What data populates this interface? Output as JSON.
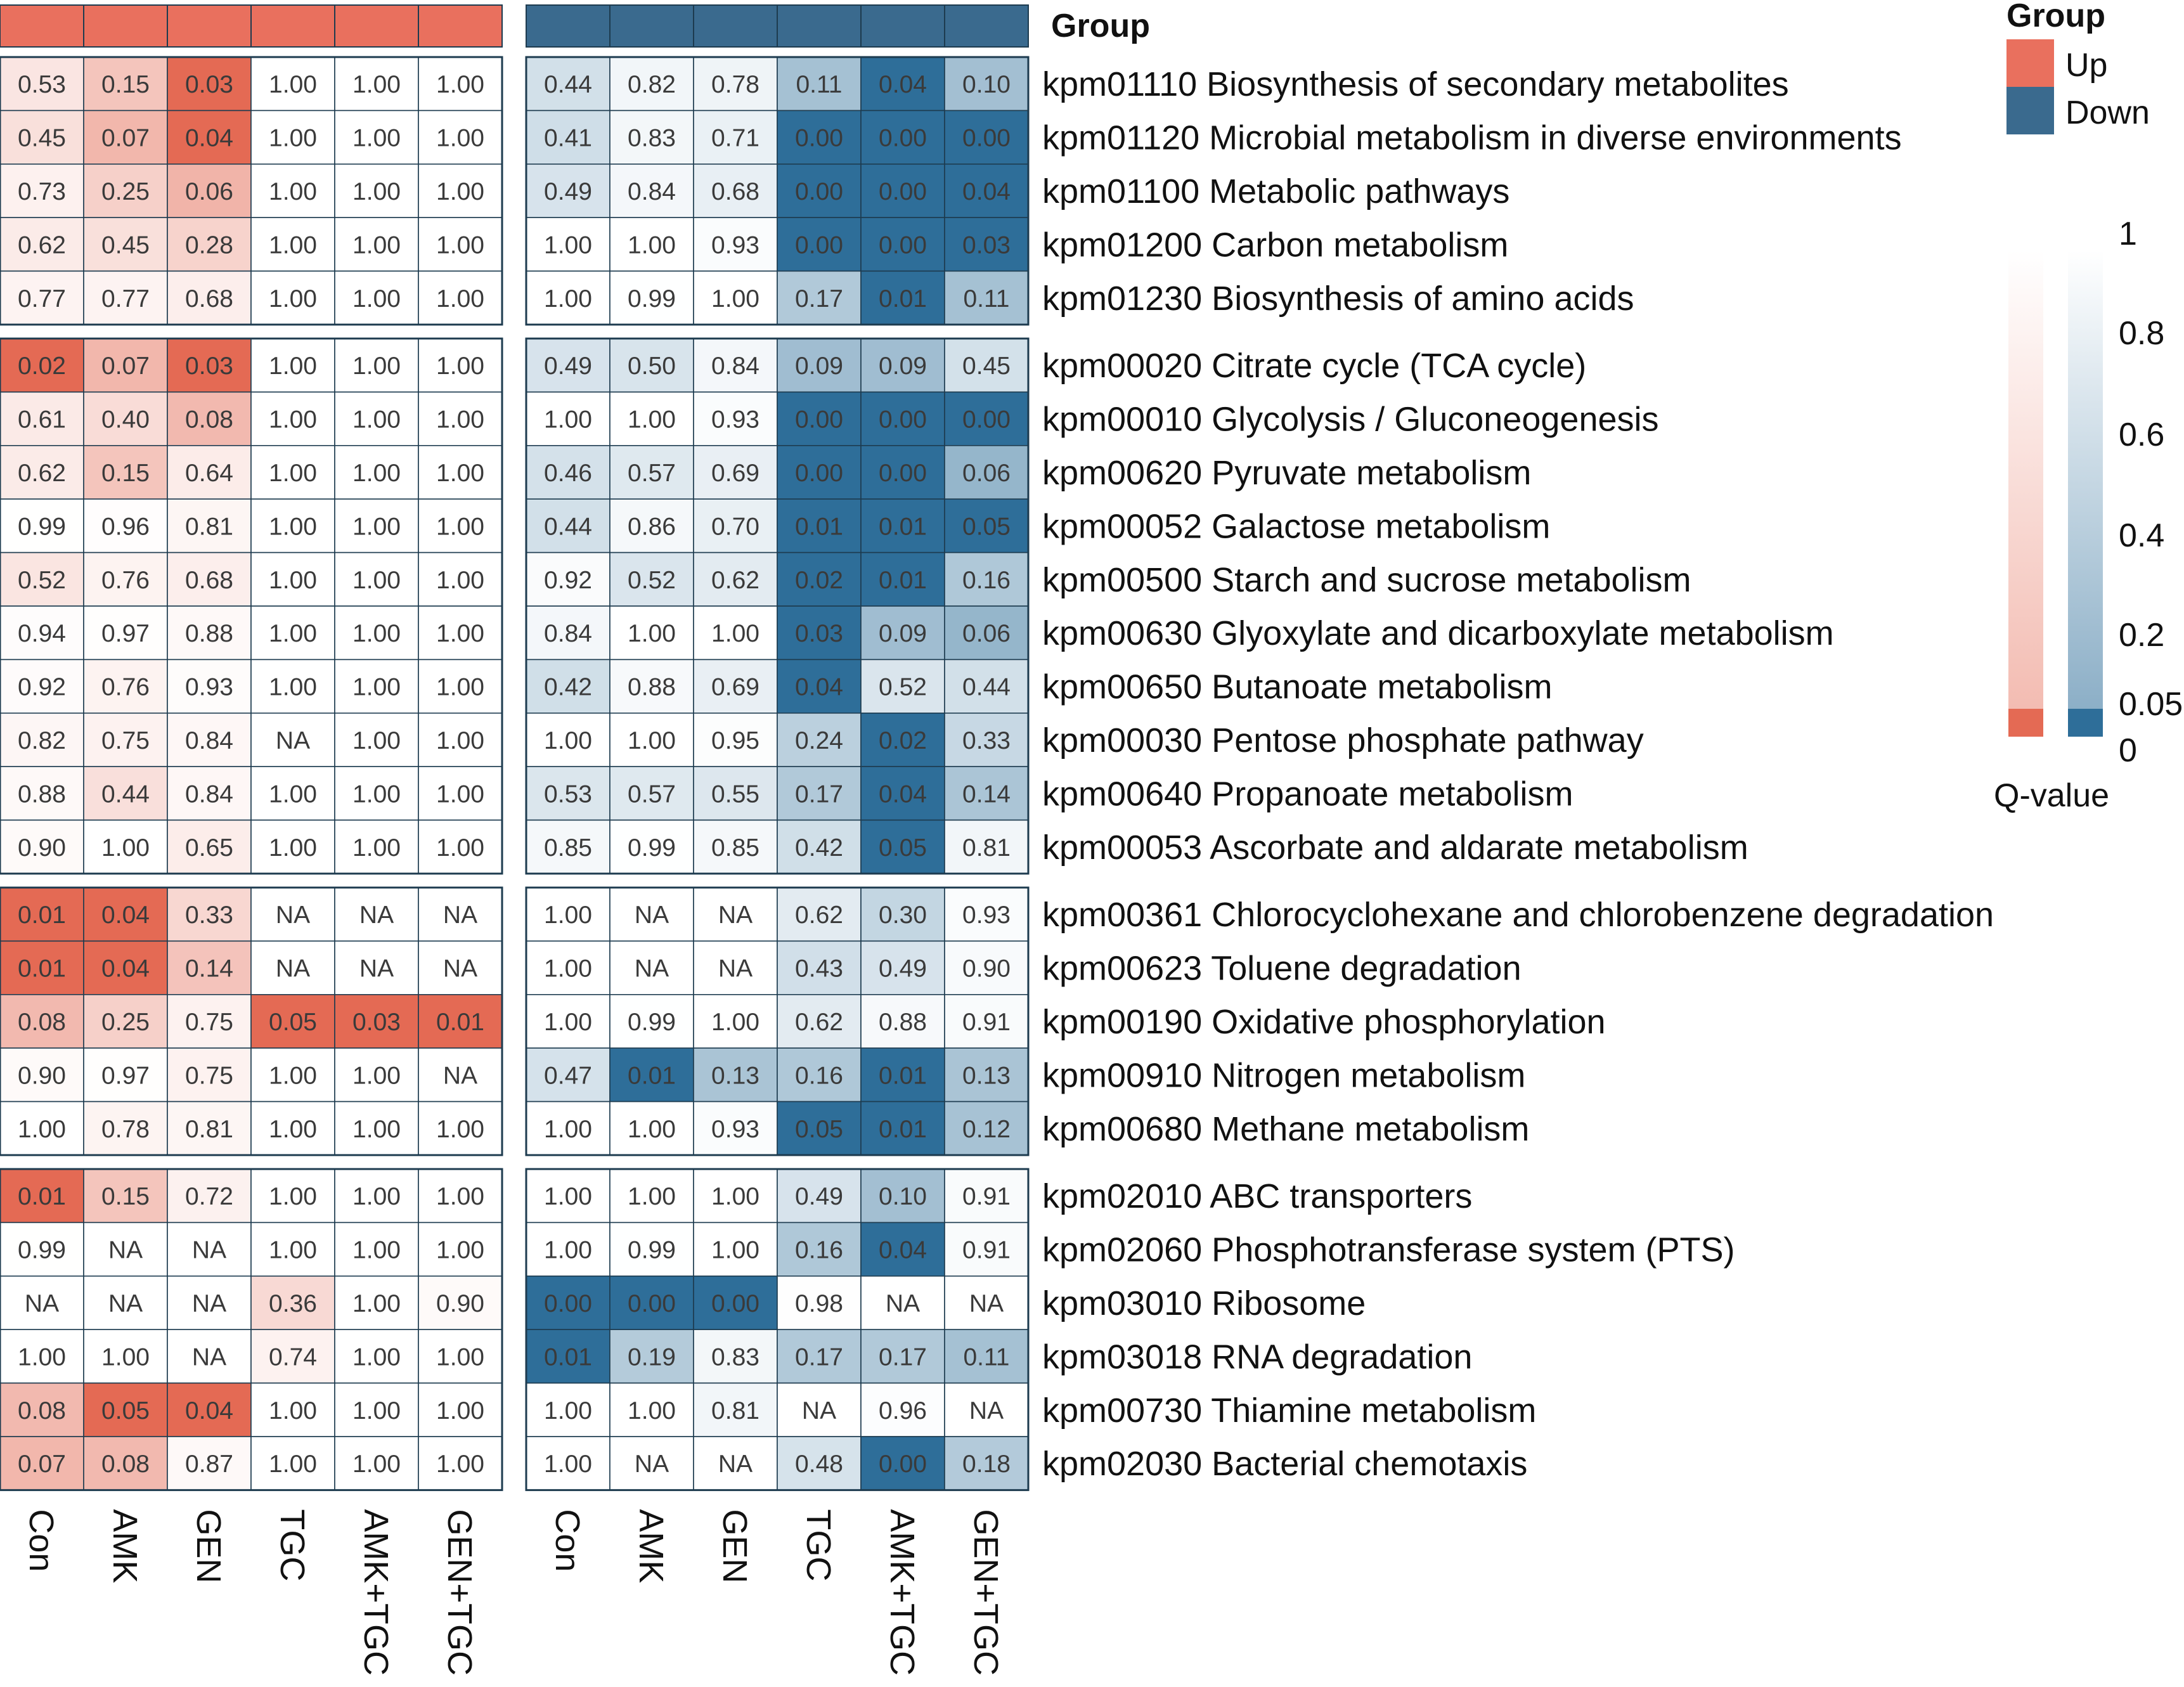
{
  "chart_data": {
    "type": "heatmap",
    "title": "",
    "annotation_title": "Group",
    "value_name": "Q-value",
    "colors": {
      "up": "#E46A54",
      "down": "#2E6E99",
      "up_bar": "#E9705E",
      "down_bar": "#3A6A8E",
      "grid": "#1d3b4f"
    },
    "columns": [
      "Con",
      "AMK",
      "GEN",
      "TGC",
      "AMK+TGC",
      "GEN+TGC"
    ],
    "panels": [
      {
        "group": "Up",
        "columns": [
          "Con",
          "AMK",
          "GEN",
          "TGC",
          "AMK+TGC",
          "GEN+TGC"
        ]
      },
      {
        "group": "Down",
        "columns": [
          "Con",
          "AMK",
          "GEN",
          "TGC",
          "AMK+TGC",
          "GEN+TGC"
        ]
      }
    ],
    "row_groups": [
      5,
      10,
      5,
      6
    ],
    "rows": [
      {
        "label": "kpm01110 Biosynthesis of secondary metabolites",
        "up": [
          "0.53",
          "0.15",
          "0.03",
          "1.00",
          "1.00",
          "1.00"
        ],
        "down": [
          "0.44",
          "0.82",
          "0.78",
          "0.11",
          "0.04",
          "0.10"
        ]
      },
      {
        "label": "kpm01120 Microbial metabolism in diverse environments",
        "up": [
          "0.45",
          "0.07",
          "0.04",
          "1.00",
          "1.00",
          "1.00"
        ],
        "down": [
          "0.41",
          "0.83",
          "0.71",
          "0.00",
          "0.00",
          "0.00"
        ]
      },
      {
        "label": "kpm01100 Metabolic pathways",
        "up": [
          "0.73",
          "0.25",
          "0.06",
          "1.00",
          "1.00",
          "1.00"
        ],
        "down": [
          "0.49",
          "0.84",
          "0.68",
          "0.00",
          "0.00",
          "0.04"
        ]
      },
      {
        "label": "kpm01200 Carbon metabolism",
        "up": [
          "0.62",
          "0.45",
          "0.28",
          "1.00",
          "1.00",
          "1.00"
        ],
        "down": [
          "1.00",
          "1.00",
          "0.93",
          "0.00",
          "0.00",
          "0.03"
        ]
      },
      {
        "label": "kpm01230 Biosynthesis of amino acids",
        "up": [
          "0.77",
          "0.77",
          "0.68",
          "1.00",
          "1.00",
          "1.00"
        ],
        "down": [
          "1.00",
          "0.99",
          "1.00",
          "0.17",
          "0.01",
          "0.11"
        ]
      },
      {
        "label": "kpm00020 Citrate cycle (TCA cycle)",
        "up": [
          "0.02",
          "0.07",
          "0.03",
          "1.00",
          "1.00",
          "1.00"
        ],
        "down": [
          "0.49",
          "0.50",
          "0.84",
          "0.09",
          "0.09",
          "0.45"
        ]
      },
      {
        "label": "kpm00010 Glycolysis / Gluconeogenesis",
        "up": [
          "0.61",
          "0.40",
          "0.08",
          "1.00",
          "1.00",
          "1.00"
        ],
        "down": [
          "1.00",
          "1.00",
          "0.93",
          "0.00",
          "0.00",
          "0.00"
        ]
      },
      {
        "label": "kpm00620 Pyruvate metabolism",
        "up": [
          "0.62",
          "0.15",
          "0.64",
          "1.00",
          "1.00",
          "1.00"
        ],
        "down": [
          "0.46",
          "0.57",
          "0.69",
          "0.00",
          "0.00",
          "0.06"
        ]
      },
      {
        "label": "kpm00052 Galactose metabolism",
        "up": [
          "0.99",
          "0.96",
          "0.81",
          "1.00",
          "1.00",
          "1.00"
        ],
        "down": [
          "0.44",
          "0.86",
          "0.70",
          "0.01",
          "0.01",
          "0.05"
        ]
      },
      {
        "label": "kpm00500 Starch and sucrose metabolism",
        "up": [
          "0.52",
          "0.76",
          "0.68",
          "1.00",
          "1.00",
          "1.00"
        ],
        "down": [
          "0.92",
          "0.52",
          "0.62",
          "0.02",
          "0.01",
          "0.16"
        ]
      },
      {
        "label": "kpm00630 Glyoxylate and dicarboxylate metabolism",
        "up": [
          "0.94",
          "0.97",
          "0.88",
          "1.00",
          "1.00",
          "1.00"
        ],
        "down": [
          "0.84",
          "1.00",
          "1.00",
          "0.03",
          "0.09",
          "0.06"
        ]
      },
      {
        "label": "kpm00650 Butanoate metabolism",
        "up": [
          "0.92",
          "0.76",
          "0.93",
          "1.00",
          "1.00",
          "1.00"
        ],
        "down": [
          "0.42",
          "0.88",
          "0.69",
          "0.04",
          "0.52",
          "0.44"
        ]
      },
      {
        "label": "kpm00030 Pentose phosphate pathway",
        "up": [
          "0.82",
          "0.75",
          "0.84",
          "NA",
          "1.00",
          "1.00"
        ],
        "down": [
          "1.00",
          "1.00",
          "0.95",
          "0.24",
          "0.02",
          "0.33"
        ]
      },
      {
        "label": "kpm00640 Propanoate metabolism",
        "up": [
          "0.88",
          "0.44",
          "0.84",
          "1.00",
          "1.00",
          "1.00"
        ],
        "down": [
          "0.53",
          "0.57",
          "0.55",
          "0.17",
          "0.04",
          "0.14"
        ]
      },
      {
        "label": "kpm00053 Ascorbate and aldarate metabolism",
        "up": [
          "0.90",
          "1.00",
          "0.65",
          "1.00",
          "1.00",
          "1.00"
        ],
        "down": [
          "0.85",
          "0.99",
          "0.85",
          "0.42",
          "0.05",
          "0.81"
        ]
      },
      {
        "label": "kpm00361 Chlorocyclohexane and chlorobenzene degradation",
        "up": [
          "0.01",
          "0.04",
          "0.33",
          "NA",
          "NA",
          "NA"
        ],
        "down": [
          "1.00",
          "NA",
          "NA",
          "0.62",
          "0.30",
          "0.93"
        ]
      },
      {
        "label": "kpm00623 Toluene degradation",
        "up": [
          "0.01",
          "0.04",
          "0.14",
          "NA",
          "NA",
          "NA"
        ],
        "down": [
          "1.00",
          "NA",
          "NA",
          "0.43",
          "0.49",
          "0.90"
        ]
      },
      {
        "label": "kpm00190 Oxidative phosphorylation",
        "up": [
          "0.08",
          "0.25",
          "0.75",
          "0.05",
          "0.03",
          "0.01"
        ],
        "down": [
          "1.00",
          "0.99",
          "1.00",
          "0.62",
          "0.88",
          "0.91"
        ]
      },
      {
        "label": "kpm00910 Nitrogen metabolism",
        "up": [
          "0.90",
          "0.97",
          "0.75",
          "1.00",
          "1.00",
          "NA"
        ],
        "down": [
          "0.47",
          "0.01",
          "0.13",
          "0.16",
          "0.01",
          "0.13"
        ]
      },
      {
        "label": "kpm00680 Methane metabolism",
        "up": [
          "1.00",
          "0.78",
          "0.81",
          "1.00",
          "1.00",
          "1.00"
        ],
        "down": [
          "1.00",
          "1.00",
          "0.93",
          "0.05",
          "0.01",
          "0.12"
        ]
      },
      {
        "label": "kpm02010 ABC transporters",
        "up": [
          "0.01",
          "0.15",
          "0.72",
          "1.00",
          "1.00",
          "1.00"
        ],
        "down": [
          "1.00",
          "1.00",
          "1.00",
          "0.49",
          "0.10",
          "0.91"
        ]
      },
      {
        "label": "kpm02060 Phosphotransferase system (PTS)",
        "up": [
          "0.99",
          "NA",
          "NA",
          "1.00",
          "1.00",
          "1.00"
        ],
        "down": [
          "1.00",
          "0.99",
          "1.00",
          "0.16",
          "0.04",
          "0.91"
        ]
      },
      {
        "label": "kpm03010 Ribosome",
        "up": [
          "NA",
          "NA",
          "NA",
          "0.36",
          "1.00",
          "0.90"
        ],
        "down": [
          "0.00",
          "0.00",
          "0.00",
          "0.98",
          "NA",
          "NA"
        ]
      },
      {
        "label": "kpm03018 RNA degradation",
        "up": [
          "1.00",
          "1.00",
          "NA",
          "0.74",
          "1.00",
          "1.00"
        ],
        "down": [
          "0.01",
          "0.19",
          "0.83",
          "0.17",
          "0.17",
          "0.11"
        ]
      },
      {
        "label": "kpm00730 Thiamine metabolism",
        "up": [
          "0.08",
          "0.05",
          "0.04",
          "1.00",
          "1.00",
          "1.00"
        ],
        "down": [
          "1.00",
          "1.00",
          "0.81",
          "NA",
          "0.96",
          "NA"
        ]
      },
      {
        "label": "kpm02030 Bacterial chemotaxis",
        "up": [
          "0.07",
          "0.08",
          "0.87",
          "1.00",
          "1.00",
          "1.00"
        ],
        "down": [
          "1.00",
          "NA",
          "NA",
          "0.48",
          "0.00",
          "0.18"
        ]
      }
    ],
    "legend": {
      "group_title": "Group",
      "groups": [
        "Up",
        "Down"
      ],
      "scale_ticks": [
        "1",
        "0.8",
        "0.6",
        "0.4",
        "0.2",
        "0.05",
        "0"
      ],
      "scale_values": [
        1,
        0.8,
        0.6,
        0.4,
        0.2,
        0.05,
        0
      ],
      "scale_title": "Q-value"
    }
  }
}
